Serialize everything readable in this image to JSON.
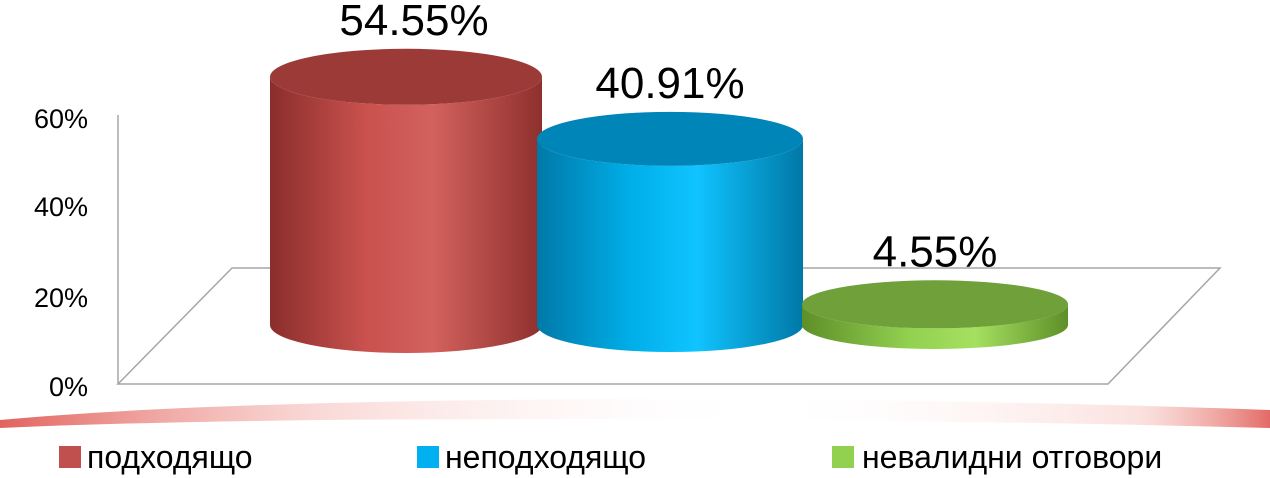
{
  "chart_data": {
    "type": "bar",
    "style": "3d-cylinder",
    "categories": [
      "подходящо",
      "неподходящо",
      "невалидни отговори"
    ],
    "values": [
      54.55,
      40.91,
      4.55
    ],
    "value_labels": [
      "54.55%",
      "40.91%",
      "4.55%"
    ],
    "ylim": [
      0,
      60
    ],
    "yticks": [
      0,
      20,
      40,
      60
    ],
    "ytick_labels": [
      "0%",
      "20%",
      "40%",
      "60%"
    ],
    "colors": [
      "#c0504d",
      "#00b0f0",
      "#92d050"
    ],
    "grid": false,
    "legend": {
      "position": "bottom",
      "entries": [
        {
          "label": "подходящо",
          "color": "#c0504d"
        },
        {
          "label": "неподходящо",
          "color": "#00b0f0"
        },
        {
          "label": "невалидни отговори",
          "color": "#92d050"
        }
      ]
    }
  },
  "decor": {
    "bottom_swoosh_color": "#d9534f"
  }
}
